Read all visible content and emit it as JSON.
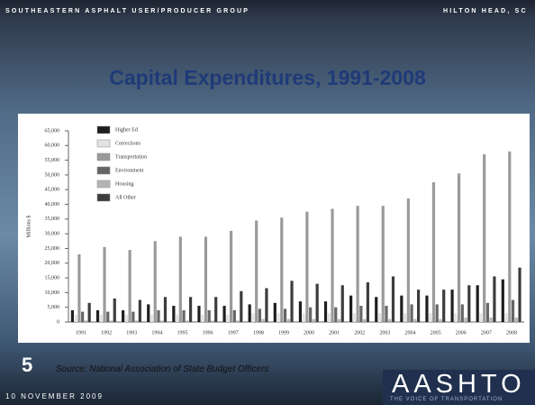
{
  "header": {
    "left": "SOUTHEASTERN ASPHALT USER/PRODUCER GROUP",
    "right": "HILTON HEAD, SC"
  },
  "slide_number": "5",
  "source": "Source: National Association of State Budget Officers",
  "date": "10 NOVEMBER 2009",
  "logo": {
    "name": "AASHTO",
    "tagline": "THE VOICE OF TRANSPORTATION"
  },
  "chart_data": {
    "type": "bar",
    "title": "Capital Expenditures, 1991-2008",
    "y_label": "Millions $",
    "categories": [
      "1991",
      "1992",
      "1993",
      "1994",
      "1995",
      "1996",
      "1997",
      "1998",
      "1999",
      "2000",
      "2001",
      "2002",
      "2003",
      "2004",
      "2005",
      "2006",
      "2007",
      "2008"
    ],
    "series": [
      {
        "name": "Higher Ed",
        "color": "#1e1e1e",
        "values": [
          4000,
          4000,
          4000,
          6000,
          5500,
          5500,
          5500,
          6000,
          6500,
          7000,
          7000,
          9000,
          8500,
          9000,
          9000,
          11000,
          12500,
          14500
        ]
      },
      {
        "name": "Corrections",
        "color": "#e2e2e2",
        "values": [
          2500,
          2500,
          2500,
          2500,
          2500,
          2500,
          2500,
          3000,
          3000,
          3000,
          3000,
          3000,
          3000,
          3000,
          3000,
          3000,
          3000,
          3000
        ]
      },
      {
        "name": "Transportation",
        "color": "#9a9a9a",
        "values": [
          23000,
          25500,
          24500,
          27500,
          29000,
          29000,
          31000,
          34500,
          35500,
          37500,
          38500,
          39500,
          39500,
          42000,
          47500,
          50500,
          57000,
          58000
        ]
      },
      {
        "name": "Environment",
        "color": "#666666",
        "values": [
          3500,
          3500,
          3500,
          4000,
          4000,
          4000,
          4000,
          4500,
          4500,
          5000,
          5000,
          5500,
          5500,
          6000,
          6000,
          6000,
          6500,
          7500
        ]
      },
      {
        "name": "Housing",
        "color": "#b4b4b4",
        "values": [
          500,
          500,
          500,
          500,
          500,
          500,
          500,
          1000,
          1000,
          1000,
          1000,
          1000,
          1000,
          1000,
          1000,
          1500,
          1500,
          1500
        ]
      },
      {
        "name": "All Other",
        "color": "#3c3c3c",
        "values": [
          6500,
          8000,
          7500,
          8500,
          8500,
          8500,
          10500,
          11500,
          14000,
          13000,
          12500,
          13500,
          15500,
          11000,
          11000,
          12500,
          15500,
          18500
        ]
      }
    ],
    "ylim": [
      0,
      65000
    ],
    "yticks": [
      0,
      {
        "value": 5000,
        "label": "5,000"
      },
      {
        "value": 10000,
        "label": "10,000"
      },
      {
        "value": 15000,
        "label": "15,000"
      },
      {
        "value": 20000,
        "label": "20,000"
      },
      {
        "value": 25000,
        "label": "25,000"
      },
      {
        "value": 30000,
        "label": "30,000"
      },
      {
        "value": 35000,
        "label": "35,000"
      },
      {
        "value": 40000,
        "label": "40,000"
      },
      {
        "value": 45000,
        "label": "45,000"
      },
      {
        "value": 50000,
        "label": "50,000"
      },
      {
        "value": 55000,
        "label": "55,000"
      },
      {
        "value": 60000,
        "label": "60,000"
      },
      {
        "value": 65000,
        "label": "65,000"
      }
    ],
    "legend": "top-left",
    "grid": false
  }
}
